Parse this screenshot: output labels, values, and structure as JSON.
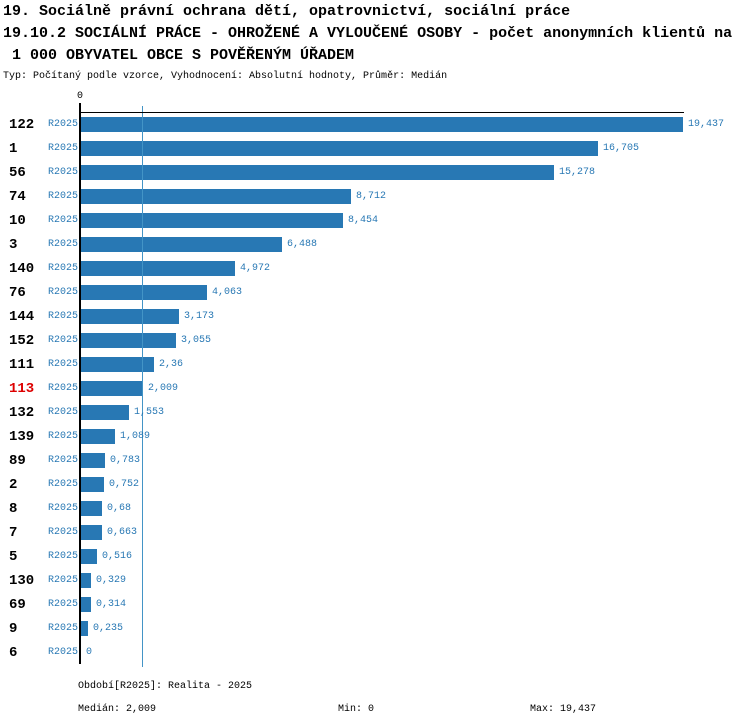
{
  "title": {
    "line1": "19. Sociálně právní ochrana dětí, opatrovnictví, sociální práce",
    "line2": "19.10.2 SOCIÁLNÍ PRÁCE - OHROŽENÉ A VYLOUČENÉ OSOBY - počet anonymních klientů na",
    "line3": " 1 000 OBYVATEL OBCE S POVĚŘENÝM ÚŘADEM",
    "subtitle": "Typ: Počítaný podle vzorce, Vyhodnocení: Absolutní hodnoty, Průměr: Medián"
  },
  "chart_data": {
    "type": "bar",
    "orientation": "horizontal",
    "axis_tick_label": "0",
    "series_label": "R2025",
    "xlim": [
      0,
      19.437
    ],
    "median_value": 2.009,
    "categories": [
      "122",
      "1",
      "56",
      "74",
      "10",
      "3",
      "140",
      "76",
      "144",
      "152",
      "111",
      "113",
      "132",
      "139",
      "89",
      "2",
      "8",
      "7",
      "5",
      "130",
      "69",
      "9",
      "6"
    ],
    "values": [
      19.437,
      16.705,
      15.278,
      8.712,
      8.454,
      6.488,
      4.972,
      4.063,
      3.173,
      3.055,
      2.36,
      2.009,
      1.553,
      1.089,
      0.783,
      0.752,
      0.68,
      0.663,
      0.516,
      0.329,
      0.314,
      0.235,
      0
    ],
    "value_labels": [
      "19,437",
      "16,705",
      "15,278",
      "8,712",
      "8,454",
      "6,488",
      "4,972",
      "4,063",
      "3,173",
      "3,055",
      "2,36",
      "2,009",
      "1,553",
      "1,089",
      "0,783",
      "0,752",
      "0,68",
      "0,663",
      "0,516",
      "0,329",
      "0,314",
      "0,235",
      "0"
    ],
    "highlighted_category": "113",
    "colors": {
      "bar": "#2878b4",
      "value_text": "#2878b4",
      "series_text": "#2878b4",
      "id_text": "#000000",
      "highlight_id_text": "#dd0000",
      "median_line": "#4394c6",
      "axis": "#000000"
    }
  },
  "footer": {
    "period": "Období[R2025]: Realita - 2025",
    "median": "Medián: 2,009",
    "min": "Min: 0",
    "max": "Max: 19,437"
  }
}
